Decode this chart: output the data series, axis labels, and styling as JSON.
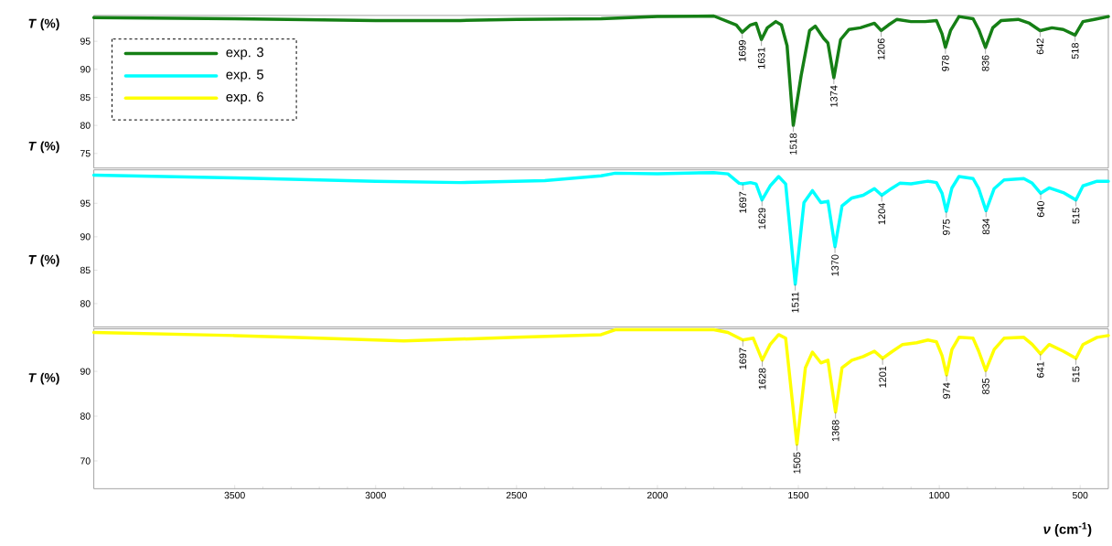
{
  "chart_data": [
    {
      "type": "line",
      "ylabel": "*T* (%)",
      "xlim": [
        4000,
        400
      ],
      "ylim": [
        72.4,
        99.6
      ],
      "yticks": [
        75,
        80,
        85,
        90,
        95
      ],
      "tick_labels": "y",
      "legend": "top left",
      "series": [
        {
          "name": "exp. 3",
          "color": "#157f15",
          "x": [
            4000,
            3500,
            3000,
            2700,
            2500,
            2200,
            2000,
            1800,
            1720,
            1699,
            1670,
            1650,
            1631,
            1610,
            1580,
            1560,
            1540,
            1518,
            1490,
            1460,
            1440,
            1410,
            1395,
            1374,
            1350,
            1320,
            1280,
            1230,
            1206,
            1180,
            1150,
            1100,
            1050,
            1010,
            990,
            978,
            960,
            930,
            880,
            860,
            836,
            810,
            780,
            720,
            680,
            642,
            600,
            560,
            518,
            490,
            450,
            400
          ],
          "values": [
            99.2,
            99.0,
            98.7,
            98.7,
            98.9,
            99.0,
            99.4,
            99.5,
            97.9,
            96.6,
            97.9,
            98.2,
            95.3,
            97.4,
            98.5,
            97.9,
            94.2,
            80.0,
            88.9,
            96.9,
            97.7,
            95.5,
            94.7,
            88.5,
            95.3,
            97.1,
            97.4,
            98.2,
            96.9,
            97.9,
            98.9,
            98.5,
            98.5,
            98.7,
            96.3,
            93.9,
            96.9,
            99.4,
            99.0,
            97.1,
            93.9,
            97.4,
            98.7,
            98.9,
            98.2,
            96.9,
            97.4,
            97.1,
            96.1,
            98.5,
            98.9,
            99.4
          ]
        }
      ],
      "annotations": [
        {
          "text": "1699",
          "x": 1699,
          "y": 96.6
        },
        {
          "text": "1631",
          "x": 1631,
          "y": 95.3
        },
        {
          "text": "1518",
          "x": 1518,
          "y": 80.0
        },
        {
          "text": "1374",
          "x": 1374,
          "y": 88.5
        },
        {
          "text": "1206",
          "x": 1206,
          "y": 96.9
        },
        {
          "text": "978",
          "x": 978,
          "y": 93.9
        },
        {
          "text": "836",
          "x": 836,
          "y": 93.9
        },
        {
          "text": "642",
          "x": 642,
          "y": 96.9
        },
        {
          "text": "518",
          "x": 518,
          "y": 96.1
        },
        "*T* (%)"
      ]
    },
    {
      "type": "line",
      "ylabel": "*T* (%)",
      "xlim": [
        4000,
        400
      ],
      "ylim": [
        76.5,
        100
      ],
      "yticks": [
        80,
        85,
        90,
        95
      ],
      "tick_labels": "y",
      "series": [
        {
          "name": "exp. 5",
          "color": "#00ffff",
          "x": [
            4000,
            3500,
            3000,
            2700,
            2400,
            2200,
            2150,
            2000,
            1800,
            1750,
            1710,
            1697,
            1670,
            1650,
            1629,
            1600,
            1570,
            1545,
            1511,
            1480,
            1450,
            1420,
            1395,
            1370,
            1345,
            1310,
            1270,
            1230,
            1204,
            1170,
            1140,
            1100,
            1040,
            1010,
            990,
            975,
            955,
            930,
            880,
            860,
            834,
            805,
            770,
            700,
            670,
            640,
            610,
            560,
            515,
            490,
            440,
            400
          ],
          "values": [
            99.2,
            98.8,
            98.3,
            98.1,
            98.4,
            99.1,
            99.5,
            99.4,
            99.6,
            99.4,
            98.0,
            97.9,
            98.1,
            97.9,
            95.5,
            97.6,
            99.0,
            97.9,
            82.9,
            95.1,
            96.9,
            95.1,
            95.3,
            88.5,
            94.6,
            95.8,
            96.2,
            97.2,
            96.2,
            97.2,
            98.0,
            97.9,
            98.3,
            98.1,
            96.5,
            93.8,
            97.3,
            99.0,
            98.7,
            97.2,
            93.9,
            97.2,
            98.5,
            98.7,
            98.0,
            96.5,
            97.3,
            96.6,
            95.5,
            97.6,
            98.3,
            98.3
          ]
        }
      ],
      "annotations": [
        {
          "text": "1697",
          "x": 1697,
          "y": 97.9
        },
        {
          "text": "1629",
          "x": 1629,
          "y": 95.5
        },
        {
          "text": "1511",
          "x": 1511,
          "y": 82.9
        },
        {
          "text": "1370",
          "x": 1370,
          "y": 88.5
        },
        {
          "text": "1204",
          "x": 1204,
          "y": 96.2
        },
        {
          "text": "975",
          "x": 975,
          "y": 93.8
        },
        {
          "text": "834",
          "x": 834,
          "y": 93.9
        },
        {
          "text": "640",
          "x": 640,
          "y": 96.5
        },
        {
          "text": "515",
          "x": 515,
          "y": 95.5
        }
      ]
    },
    {
      "type": "line",
      "ylabel": "*T* (%)",
      "xlabel": "*ν* (cm$^{-1}$)",
      "xlim": [
        4000,
        400
      ],
      "xticks": [
        3500,
        3000,
        2500,
        2000,
        1500,
        1000,
        500
      ],
      "ylim": [
        63.8,
        99.5
      ],
      "yticks": [
        70,
        80,
        90
      ],
      "series": [
        {
          "name": "exp. 6",
          "color": "#ffff00",
          "x": [
            4000,
            3500,
            3300,
            3000,
            2900,
            2500,
            2200,
            2150,
            2000,
            1800,
            1750,
            1710,
            1697,
            1660,
            1628,
            1600,
            1570,
            1545,
            1505,
            1475,
            1450,
            1420,
            1395,
            1368,
            1345,
            1310,
            1270,
            1230,
            1201,
            1170,
            1130,
            1080,
            1040,
            1010,
            990,
            974,
            955,
            930,
            880,
            860,
            835,
            805,
            770,
            700,
            670,
            641,
            610,
            560,
            515,
            490,
            440,
            400
          ],
          "values": [
            98.7,
            98.0,
            97.6,
            97.0,
            96.8,
            97.6,
            98.2,
            99.3,
            99.3,
            99.3,
            98.7,
            97.4,
            97.0,
            97.4,
            92.5,
            96.0,
            98.2,
            97.4,
            73.7,
            90.8,
            94.3,
            91.9,
            92.5,
            80.9,
            90.8,
            92.5,
            93.3,
            94.5,
            92.9,
            94.3,
            96.0,
            96.4,
            97.0,
            96.6,
            93.5,
            89.2,
            94.9,
            97.6,
            97.4,
            94.5,
            90.2,
            94.9,
            97.4,
            97.6,
            96.0,
            93.9,
            96.0,
            94.5,
            92.9,
            96.0,
            97.6,
            98.0
          ]
        }
      ],
      "annotations": [
        {
          "text": "1697",
          "x": 1697,
          "y": 97.0
        },
        {
          "text": "1628",
          "x": 1628,
          "y": 92.5
        },
        {
          "text": "1505",
          "x": 1505,
          "y": 73.7
        },
        {
          "text": "1368",
          "x": 1368,
          "y": 80.9
        },
        {
          "text": "1201",
          "x": 1201,
          "y": 92.9
        },
        {
          "text": "974",
          "x": 974,
          "y": 89.2
        },
        {
          "text": "835",
          "x": 835,
          "y": 90.2
        },
        {
          "text": "641",
          "x": 641,
          "y": 93.9
        },
        {
          "text": "515",
          "x": 515,
          "y": 92.9
        }
      ]
    }
  ]
}
